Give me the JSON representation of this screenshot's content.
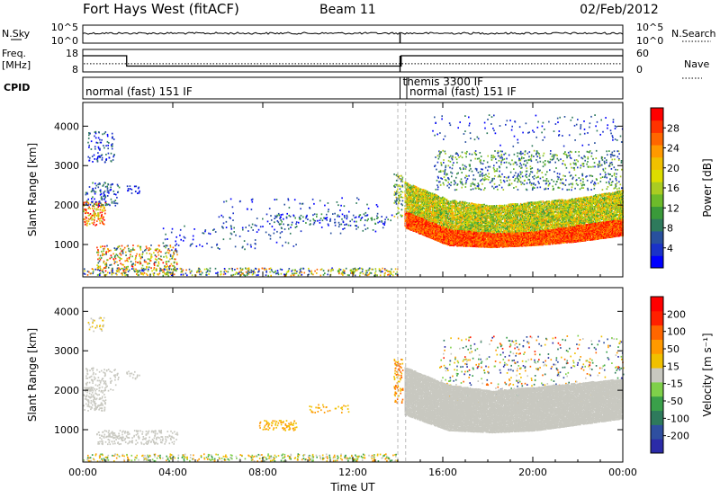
{
  "header": {
    "site": "Fort Hays West (fitACF)",
    "beam": "Beam 11",
    "date": "02/Feb/2012"
  },
  "top_panels": {
    "nsky_label": "N.Sky",
    "nsky_ticks": [
      "10^5",
      "10^0"
    ],
    "nsearch_label": "N.Search",
    "nsearch_ticks": [
      "10^5",
      "10^0"
    ],
    "freq_label_line1": "Freq.",
    "freq_label_line2": "[MHz]",
    "freq_ticks": [
      "18",
      "8"
    ],
    "nave_label": "Nave",
    "nave_ticks": [
      "60",
      "0"
    ],
    "freq_steps": [
      {
        "t": 0.0,
        "mhz": 15.2
      },
      {
        "t": 1.95,
        "mhz": 10.6
      },
      {
        "t": 14.15,
        "mhz": 15.2
      },
      {
        "t": 24.0,
        "mhz": 15.2
      }
    ],
    "nave_level": 22,
    "cpid_label": "CPID",
    "cpid_segments": [
      {
        "text": "normal (fast) 151 IF",
        "start": 0.0
      },
      {
        "text": "themis 3300 IF",
        "start": 14.1
      },
      {
        "text": "normal (fast) 151 IF",
        "start": 14.4
      }
    ]
  },
  "chart_data": [
    {
      "type": "heatmap",
      "name": "power-panel",
      "xlabel": "",
      "ylabel": "Slant Range [km]",
      "xlim": [
        0,
        24
      ],
      "ylim": [
        180,
        4600
      ],
      "x_ticks": [
        "00:00",
        "04:00",
        "08:00",
        "12:00",
        "16:00",
        "20:00",
        "00:00"
      ],
      "y_ticks": [
        1000,
        2000,
        3000,
        4000
      ],
      "colorbar": {
        "label": "Power [dB]",
        "ticks": [
          "28",
          "24",
          "20",
          "16",
          "12",
          "8",
          "4"
        ],
        "colors": [
          "#0000ff",
          "#1a32c8",
          "#28509e",
          "#2e7a5c",
          "#3a9a3a",
          "#6dbb2a",
          "#aacc22",
          "#dddd00",
          "#f0c000",
          "#ff9900",
          "#ff6600",
          "#ff3300",
          "#ff0000"
        ]
      },
      "scatter_regions": [
        {
          "t0": 0.0,
          "t1": 1.0,
          "r0": 1500,
          "r1": 2100,
          "c": [
            6,
            12
          ],
          "d": 0.7
        },
        {
          "t0": 0.1,
          "t1": 1.6,
          "r0": 2000,
          "r1": 2600,
          "c": [
            0,
            4
          ],
          "d": 0.4
        },
        {
          "t0": 0.2,
          "t1": 1.4,
          "r0": 3100,
          "r1": 3900,
          "c": [
            0,
            3
          ],
          "d": 0.3
        },
        {
          "t0": 1.9,
          "t1": 2.5,
          "r0": 2300,
          "r1": 2500,
          "c": [
            0,
            2
          ],
          "d": 0.5
        },
        {
          "t0": 0.6,
          "t1": 4.2,
          "r0": 350,
          "r1": 1000,
          "c": [
            2,
            12
          ],
          "d": 0.45
        },
        {
          "t0": 0.0,
          "t1": 14.0,
          "r0": 230,
          "r1": 420,
          "c": [
            0,
            10
          ],
          "d": 0.55
        },
        {
          "t0": 3.5,
          "t1": 9.5,
          "r0": 900,
          "r1": 1500,
          "c": [
            0,
            3
          ],
          "d": 0.08
        },
        {
          "t0": 6.0,
          "t1": 13.5,
          "r0": 1300,
          "r1": 2200,
          "c": [
            0,
            3
          ],
          "d": 0.06
        },
        {
          "t0": 8.3,
          "t1": 13.8,
          "r0": 1500,
          "r1": 1800,
          "c": [
            0,
            4
          ],
          "d": 0.25
        },
        {
          "t0": 13.8,
          "t1": 14.2,
          "r0": 1700,
          "r1": 2800,
          "c": [
            2,
            8
          ],
          "d": 0.6
        },
        {
          "t0": 15.6,
          "t1": 24.0,
          "r0": 2400,
          "r1": 3400,
          "c": [
            1,
            6
          ],
          "d": 0.28
        },
        {
          "t0": 15.5,
          "t1": 24.0,
          "r0": 3500,
          "r1": 4300,
          "c": [
            0,
            3
          ],
          "d": 0.06
        }
      ],
      "bands": [
        {
          "t0": 14.3,
          "t1": 24.0,
          "lo": [
            1650,
            1100,
            1050,
            1100,
            1250,
            1400
          ],
          "hi": [
            2600,
            2150,
            2000,
            2100,
            2200,
            2400
          ],
          "c": [
            4,
            9
          ],
          "d": 0.7
        },
        {
          "t0": 14.3,
          "t1": 24.0,
          "lo": [
            1450,
            1000,
            950,
            1000,
            1100,
            1250
          ],
          "hi": [
            1850,
            1400,
            1300,
            1350,
            1500,
            1650
          ],
          "c": [
            9,
            12
          ],
          "d": 0.9
        }
      ]
    },
    {
      "type": "heatmap",
      "name": "velocity-panel",
      "xlabel": "Time UT",
      "ylabel": "Slant Range [km]",
      "xlim": [
        0,
        24
      ],
      "ylim": [
        180,
        4600
      ],
      "x_ticks": [
        "00:00",
        "04:00",
        "08:00",
        "12:00",
        "16:00",
        "20:00",
        "00:00"
      ],
      "y_ticks": [
        1000,
        2000,
        3000,
        4000
      ],
      "colorbar": {
        "label": "Velocity [m s⁻¹]",
        "ticks": [
          "200",
          "100",
          "50",
          "15",
          "-15",
          "-50",
          "-100",
          "-200"
        ],
        "colors": [
          "#2b2ba8",
          "#2f4fa0",
          "#2e7a5c",
          "#3aa04a",
          "#7fd04a",
          "#c8c8c0",
          "#f0c000",
          "#ff9900",
          "#ff6600",
          "#ff2000",
          "#ff0000"
        ]
      },
      "scatter_regions": [
        {
          "t0": 0.0,
          "t1": 1.0,
          "r0": 1500,
          "r1": 2100,
          "c": [
            5,
            5
          ],
          "d": 0.7
        },
        {
          "t0": 0.1,
          "t1": 1.6,
          "r0": 2000,
          "r1": 2600,
          "c": [
            5,
            5
          ],
          "d": 0.35
        },
        {
          "t0": 0.2,
          "t1": 1.0,
          "r0": 3500,
          "r1": 3900,
          "c": [
            5,
            6
          ],
          "d": 0.3
        },
        {
          "t0": 1.9,
          "t1": 2.5,
          "r0": 2300,
          "r1": 2500,
          "c": [
            5,
            5
          ],
          "d": 0.5
        },
        {
          "t0": 0.6,
          "t1": 4.2,
          "r0": 650,
          "r1": 1000,
          "c": [
            5,
            5
          ],
          "d": 0.6
        },
        {
          "t0": 0.0,
          "t1": 14.0,
          "r0": 220,
          "r1": 400,
          "c": [
            3,
            7
          ],
          "d": 0.5
        },
        {
          "t0": 7.8,
          "t1": 9.5,
          "r0": 1000,
          "r1": 1250,
          "c": [
            6,
            7
          ],
          "d": 0.55
        },
        {
          "t0": 10.0,
          "t1": 11.8,
          "r0": 1450,
          "r1": 1650,
          "c": [
            6,
            7
          ],
          "d": 0.3
        },
        {
          "t0": 13.8,
          "t1": 14.2,
          "r0": 1700,
          "r1": 2800,
          "c": [
            6,
            8
          ],
          "d": 0.6
        },
        {
          "t0": 15.6,
          "t1": 24.0,
          "r0": 1700,
          "r1": 2800,
          "c": [
            0,
            8
          ],
          "d": 0.12
        },
        {
          "t0": 16.0,
          "t1": 24.0,
          "r0": 2500,
          "r1": 3400,
          "c": [
            0,
            9
          ],
          "d": 0.1
        }
      ],
      "bands": [
        {
          "t0": 14.3,
          "t1": 24.0,
          "lo": [
            1400,
            1000,
            950,
            1000,
            1150,
            1300
          ],
          "hi": [
            2600,
            2150,
            2000,
            2100,
            2200,
            2300
          ],
          "c": [
            5,
            5
          ],
          "d": 0.9
        }
      ]
    }
  ]
}
